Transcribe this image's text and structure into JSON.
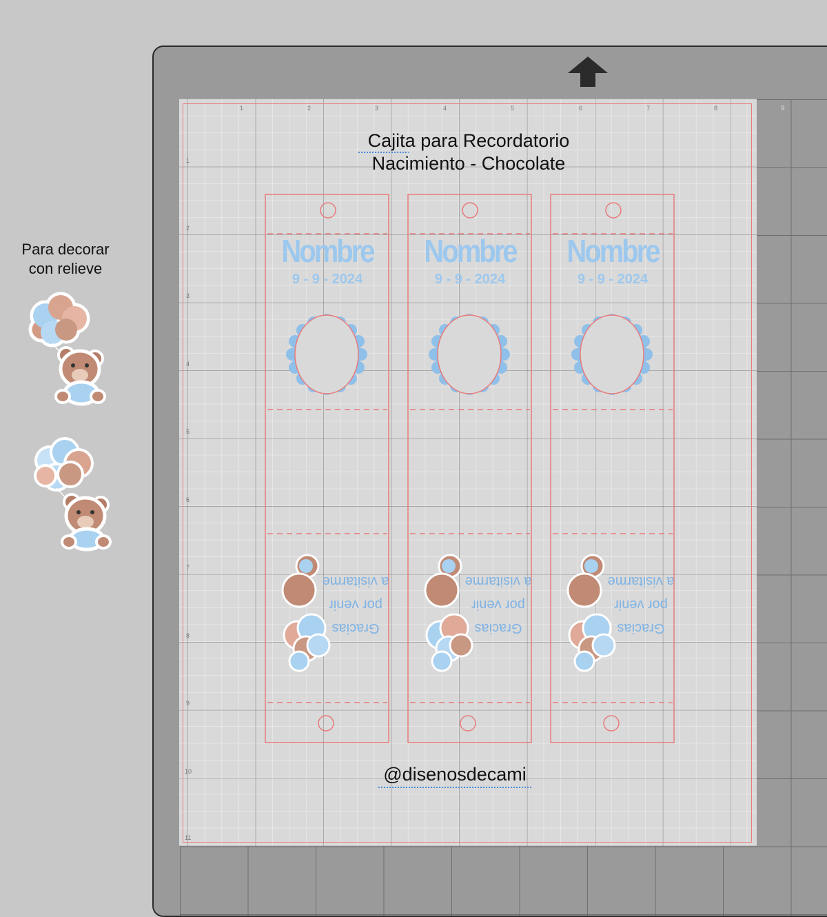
{
  "side_panel": {
    "caption_line1": "Para decorar",
    "caption_line2": "con relieve"
  },
  "design": {
    "title_line1": "Cajita para Recordatorio",
    "title_line2": "Nacimiento - Chocolate",
    "watermark": "@disenosdecami"
  },
  "tags": [
    {
      "name": "Nombre",
      "date": "9 - 9 - 2024",
      "thanks_l1": "Gracias",
      "thanks_l2": "por venir",
      "thanks_l3": "a visitarme"
    },
    {
      "name": "Nombre",
      "date": "9 - 9 - 2024",
      "thanks_l1": "Gracias",
      "thanks_l2": "por venir",
      "thanks_l3": "a visitarme"
    },
    {
      "name": "Nombre",
      "date": "9 - 9 - 2024",
      "thanks_l1": "Gracias",
      "thanks_l2": "por venir",
      "thanks_l3": "a visitarme"
    }
  ],
  "rulers": {
    "top": [
      "1",
      "2",
      "3",
      "4",
      "5",
      "6",
      "7",
      "8",
      "9"
    ],
    "left": [
      "1",
      "2",
      "3",
      "4",
      "5",
      "6",
      "7",
      "8",
      "9",
      "10",
      "11"
    ]
  },
  "colors": {
    "cut_line": "#e87a7a",
    "accent_blue": "#9dc8ee",
    "mat": "#9a9a9a",
    "sheet": "#d9d9d9"
  },
  "icons": {
    "mat_arrow": "load-arrow-icon",
    "sticker": "teddy-bear-balloons-icon"
  }
}
